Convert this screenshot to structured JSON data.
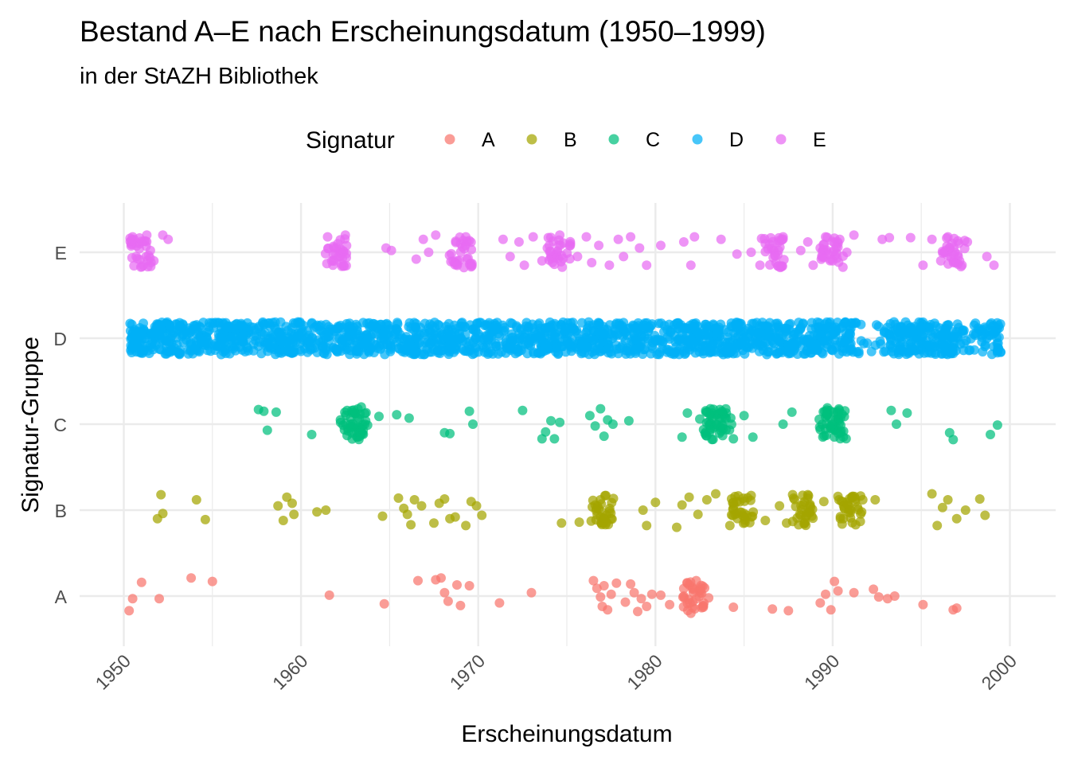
{
  "chart_data": {
    "type": "scatter",
    "title": "Bestand A–E nach Erscheinungsdatum (1950–1999)",
    "subtitle": "in der StAZH Bibliothek",
    "xlabel": "Erscheinungsdatum",
    "ylabel": "Signatur-Gruppe",
    "xlim": [
      1950,
      2000
    ],
    "x_ticks": [
      "1950",
      "1960",
      "1970",
      "1980",
      "1990",
      "2000"
    ],
    "categories": [
      "A",
      "B",
      "C",
      "D",
      "E"
    ],
    "jittered": true,
    "grid": true,
    "legend": {
      "title": "Signatur",
      "position": "top"
    },
    "colors": {
      "A": "#F8766D",
      "B": "#A3A500",
      "C": "#00BF7D",
      "D": "#00B0F6",
      "E": "#E76BF3"
    },
    "series": [
      {
        "name": "A",
        "category": "A",
        "x": [
          1950.3,
          1950.5,
          1951.0,
          1952.0,
          1953.8,
          1955.0,
          1961.6,
          1964.7,
          1966.6,
          1967.6,
          1967.9,
          1968.1,
          1968.3,
          1968.8,
          1969.0,
          1969.5,
          1971.2,
          1973.0,
          1976.5,
          1976.7,
          1976.9,
          1977.0,
          1977.1,
          1977.3,
          1977.5,
          1977.8,
          1978.3,
          1978.6,
          1978.8,
          1979.0,
          1979.2,
          1979.5,
          1979.8,
          1980.3,
          1980.8,
          1981.6,
          1981.8,
          1982.0,
          1982.1,
          1982.3,
          1982.5,
          1982.7,
          1983.0,
          1984.4,
          1986.6,
          1987.5,
          1989.3,
          1989.6,
          1989.9,
          1990.1,
          1990.3,
          1991.2,
          1992.3,
          1992.6,
          1993.1,
          1993.5,
          1995.1,
          1996.8,
          1997.0
        ],
        "y_jitter": [
          -0.17,
          -0.03,
          0.16,
          -0.03,
          0.21,
          0.17,
          0.01,
          -0.09,
          0.18,
          0.19,
          0.21,
          0.04,
          -0.06,
          0.13,
          -0.11,
          0.12,
          -0.08,
          0.04,
          0.18,
          0.09,
          -0.01,
          -0.12,
          0.12,
          -0.16,
          0.02,
          0.15,
          -0.07,
          0.14,
          0.04,
          -0.18,
          -0.03,
          -0.12,
          0.02,
          0.01,
          -0.1,
          0.0,
          0.15,
          -0.2,
          0.1,
          0.18,
          0.06,
          -0.13,
          -0.02,
          -0.13,
          -0.15,
          -0.17,
          -0.08,
          0.02,
          -0.16,
          0.17,
          0.06,
          0.04,
          0.08,
          -0.01,
          -0.03,
          0.0,
          -0.1,
          -0.16,
          -0.14
        ]
      },
      {
        "name": "B",
        "category": "B",
        "x": [
          1951.9,
          1952.1,
          1952.2,
          1954.1,
          1954.6,
          1958.7,
          1959.0,
          1959.2,
          1959.5,
          1959.6,
          1960.9,
          1961.4,
          1964.6,
          1965.5,
          1965.8,
          1966.0,
          1966.2,
          1966.4,
          1966.8,
          1967.5,
          1967.8,
          1968.1,
          1968.4,
          1968.7,
          1969.3,
          1969.6,
          1969.9,
          1970.2,
          1974.7,
          1975.7,
          1976.6,
          1976.9,
          1977.2,
          1977.5,
          1979.3,
          1979.5,
          1980.0,
          1981.2,
          1981.5,
          1981.9,
          1982.4,
          1982.9,
          1983.4,
          1984.2,
          1984.6,
          1985.0,
          1985.4,
          1986.2,
          1987.0,
          1987.4,
          1987.8,
          1988.2,
          1988.6,
          1989.5,
          1990.3,
          1990.6,
          1990.9,
          1991.3,
          1991.7,
          1992.4,
          1995.6,
          1995.9,
          1996.2,
          1996.5,
          1997.0,
          1997.5,
          1998.3,
          1998.6
        ],
        "y_jitter": [
          -0.1,
          0.18,
          -0.04,
          0.12,
          -0.11,
          0.05,
          -0.12,
          0.15,
          0.08,
          -0.05,
          -0.02,
          0.0,
          -0.07,
          0.14,
          0.02,
          -0.05,
          -0.17,
          0.12,
          0.05,
          -0.15,
          0.08,
          0.13,
          -0.1,
          -0.08,
          -0.18,
          0.1,
          0.05,
          -0.06,
          -0.15,
          -0.14,
          0.06,
          -0.08,
          0.17,
          -0.1,
          0.0,
          -0.18,
          0.09,
          -0.2,
          0.06,
          0.15,
          -0.05,
          0.12,
          0.19,
          -0.18,
          0.1,
          -0.04,
          0.17,
          -0.12,
          0.05,
          -0.15,
          0.14,
          -0.06,
          0.18,
          0.1,
          0.16,
          -0.1,
          0.05,
          -0.17,
          0.12,
          0.12,
          0.19,
          -0.18,
          0.03,
          0.12,
          -0.1,
          0.0,
          0.13,
          -0.06
        ]
      },
      {
        "name": "C",
        "category": "C",
        "x": [
          1957.6,
          1957.9,
          1958.1,
          1958.6,
          1960.6,
          1962.6,
          1962.8,
          1963.0,
          1963.2,
          1963.4,
          1963.6,
          1964.4,
          1965.4,
          1966.1,
          1968.1,
          1968.4,
          1969.5,
          1969.7,
          1972.5,
          1973.6,
          1973.8,
          1974.1,
          1974.3,
          1974.6,
          1976.3,
          1976.6,
          1976.9,
          1977.1,
          1977.3,
          1977.6,
          1978.5,
          1981.5,
          1981.8,
          1982.5,
          1982.8,
          1983.1,
          1983.4,
          1983.7,
          1984.0,
          1984.4,
          1985.0,
          1985.5,
          1987.2,
          1987.7,
          1989.7,
          1989.9,
          1990.1,
          1990.3,
          1990.6,
          1993.3,
          1993.6,
          1994.2,
          1996.6,
          1996.8,
          1998.9,
          1999.3
        ],
        "y_jitter": [
          0.17,
          0.15,
          -0.07,
          0.14,
          -0.12,
          0.16,
          0.07,
          -0.03,
          -0.15,
          0.2,
          0.0,
          0.09,
          0.11,
          0.07,
          -0.1,
          -0.11,
          0.15,
          0.0,
          0.16,
          -0.17,
          -0.09,
          0.04,
          -0.17,
          0.02,
          0.1,
          -0.02,
          0.18,
          -0.14,
          0.05,
          0.0,
          0.04,
          -0.15,
          0.13,
          0.06,
          -0.11,
          0.18,
          0.0,
          -0.08,
          0.13,
          -0.17,
          0.1,
          -0.15,
          0.0,
          0.14,
          0.19,
          0.06,
          -0.07,
          0.12,
          -0.15,
          0.16,
          0.0,
          0.13,
          -0.1,
          -0.18,
          -0.12,
          -0.01
        ],
        "x_dense": [
          1963.0,
          1983.5,
          1990.0
        ],
        "note_dense": ""
      },
      {
        "name": "D",
        "category": "D",
        "x_range": [
          1950.3,
          1999.5
        ],
        "gaps": [
          [
            1991.5,
            1993.2
          ],
          [
            1997.0,
            1998.4
          ]
        ],
        "approx_points": 2000
      },
      {
        "name": "E",
        "category": "E",
        "x": [
          1950.5,
          1950.7,
          1950.9,
          1951.1,
          1951.3,
          1951.5,
          1951.7,
          1952.2,
          1952.5,
          1961.5,
          1961.8,
          1962.0,
          1962.2,
          1962.5,
          1964.8,
          1965.1,
          1966.5,
          1966.9,
          1967.2,
          1967.6,
          1968.7,
          1969.0,
          1969.3,
          1969.6,
          1971.4,
          1971.8,
          1972.3,
          1972.6,
          1973.1,
          1973.6,
          1973.9,
          1974.3,
          1974.6,
          1975.2,
          1975.6,
          1976.1,
          1976.4,
          1976.8,
          1977.4,
          1977.9,
          1978.2,
          1978.6,
          1979.1,
          1979.5,
          1980.3,
          1981.6,
          1982.0,
          1982.2,
          1983.7,
          1984.6,
          1985.4,
          1985.9,
          1986.2,
          1986.8,
          1987.2,
          1988.2,
          1988.6,
          1988.9,
          1989.3,
          1989.6,
          1990.0,
          1990.4,
          1990.8,
          1991.2,
          1992.8,
          1993.2,
          1994.4,
          1995.1,
          1995.6,
          1996.1,
          1996.5,
          1996.9,
          1997.3,
          1997.6,
          1998.7,
          1999.1
        ],
        "y_jitter": [
          0.18,
          -0.05,
          0.1,
          -0.15,
          0.2,
          0.02,
          -0.1,
          0.2,
          0.15,
          0.18,
          -0.15,
          0.05,
          -0.05,
          0.2,
          0.05,
          0.02,
          -0.08,
          0.15,
          0.0,
          0.2,
          -0.12,
          0.1,
          0.18,
          -0.15,
          0.15,
          -0.05,
          0.12,
          -0.15,
          0.18,
          -0.1,
          0.05,
          -0.14,
          0.2,
          0.1,
          -0.05,
          0.18,
          -0.12,
          0.08,
          -0.15,
          0.15,
          -0.05,
          0.18,
          0.05,
          -0.15,
          0.08,
          0.12,
          -0.15,
          0.18,
          0.15,
          -0.02,
          0.0,
          -0.15,
          0.1,
          -0.12,
          0.18,
          0.02,
          0.12,
          -0.15,
          0.05,
          0.18,
          -0.1,
          0.15,
          0.0,
          0.2,
          0.15,
          0.17,
          0.17,
          -0.15,
          0.15,
          -0.1,
          0.18,
          0.0,
          -0.15,
          0.12,
          -0.05,
          -0.15
        ]
      }
    ]
  }
}
